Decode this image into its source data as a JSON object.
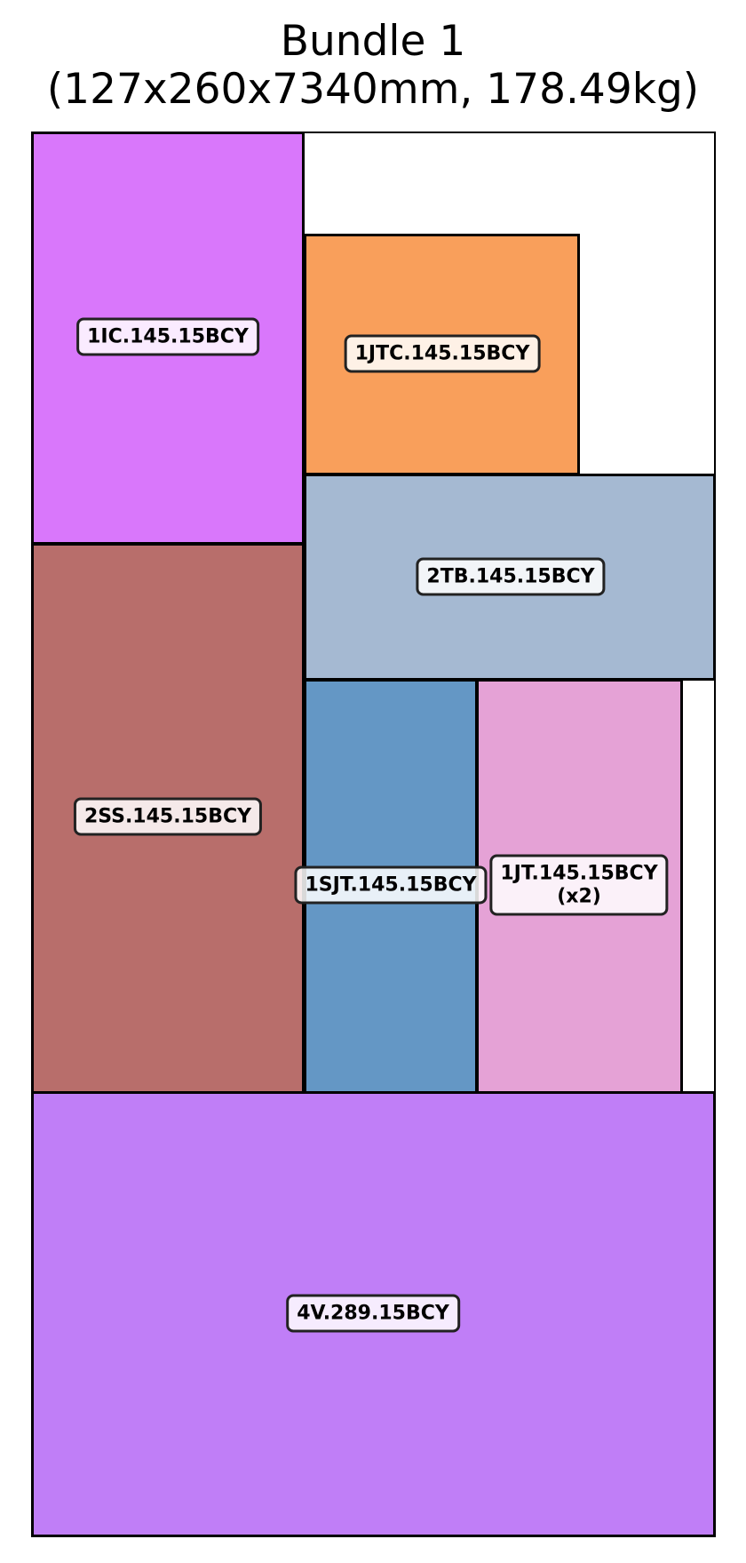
{
  "header": {
    "title_line1": "Bundle 1",
    "title_line2": "(127x260x7340mm, 178.49kg)"
  },
  "colors": {
    "ic": "#d977fb",
    "jtc": "#f99f5b",
    "ss": "#b86e6b",
    "tb": "#a5b9d2",
    "sjt": "#6497c5",
    "jt": "#e5a2d6",
    "v": "#c07ef7"
  },
  "parts": {
    "ic": {
      "label": "1IC.145.15BCY"
    },
    "jtc": {
      "label": "1JTC.145.15BCY"
    },
    "tb": {
      "label": "2TB.145.15BCY"
    },
    "ss": {
      "label": "2SS.145.15BCY"
    },
    "sjt": {
      "label": "1SJT.145.15BCY"
    },
    "jt": {
      "label": "1JT.145.15BCY",
      "qty": "(x2)"
    },
    "v": {
      "label": "4V.289.15BCY"
    }
  }
}
